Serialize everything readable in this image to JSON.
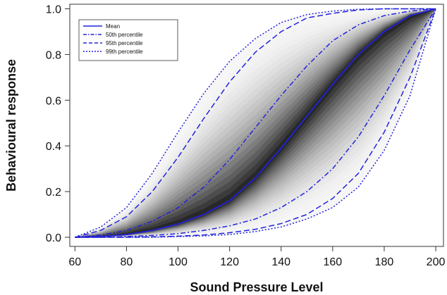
{
  "chart_data": {
    "type": "line",
    "title": "",
    "xlabel": "Sound Pressure Level",
    "ylabel": "Behavioural response",
    "xlim": [
      58,
      203
    ],
    "ylim": [
      -0.04,
      1.02
    ],
    "xticks": [
      60,
      80,
      100,
      120,
      140,
      160,
      180,
      200
    ],
    "yticks": [
      0.0,
      0.2,
      0.4,
      0.6,
      0.8,
      1.0
    ],
    "ytick_labels": [
      "0.0",
      "0.2",
      "0.4",
      "0.6",
      "0.8",
      "1.0"
    ],
    "grid": false,
    "legend_position": "top-left",
    "x": [
      60,
      70,
      80,
      90,
      100,
      110,
      120,
      130,
      140,
      150,
      160,
      170,
      180,
      190,
      200
    ],
    "series": [
      {
        "name": "Mean",
        "style": "solid",
        "color": "#2222dd",
        "values": [
          0.0,
          0.003,
          0.012,
          0.03,
          0.058,
          0.1,
          0.16,
          0.26,
          0.39,
          0.53,
          0.67,
          0.8,
          0.9,
          0.97,
          1.0
        ]
      },
      {
        "name": "50th percentile",
        "style": "dashdot",
        "color": "#2222dd",
        "values": [
          0.0,
          0.01,
          0.03,
          0.07,
          0.13,
          0.22,
          0.34,
          0.48,
          0.62,
          0.75,
          0.86,
          0.93,
          0.97,
          0.99,
          1.0
        ]
      },
      {
        "name": "50th percentile",
        "style": "dashdot",
        "color": "#2222dd",
        "values": [
          0.0,
          0.0,
          0.003,
          0.008,
          0.016,
          0.03,
          0.05,
          0.08,
          0.13,
          0.2,
          0.3,
          0.44,
          0.62,
          0.82,
          1.0
        ]
      },
      {
        "name": "95th percentile",
        "style": "dashed",
        "color": "#2222dd",
        "values": [
          0.0,
          0.03,
          0.09,
          0.2,
          0.35,
          0.52,
          0.68,
          0.81,
          0.9,
          0.96,
          0.98,
          0.995,
          1.0,
          1.0,
          1.0
        ]
      },
      {
        "name": "95th percentile",
        "style": "dashed",
        "color": "#2222dd",
        "values": [
          0.0,
          0.0,
          0.0,
          0.002,
          0.005,
          0.01,
          0.02,
          0.035,
          0.06,
          0.1,
          0.17,
          0.28,
          0.46,
          0.7,
          1.0
        ]
      },
      {
        "name": "99th percentile",
        "style": "dotted",
        "color": "#2222dd",
        "values": [
          0.0,
          0.045,
          0.13,
          0.28,
          0.46,
          0.63,
          0.77,
          0.87,
          0.94,
          0.975,
          0.99,
          0.998,
          1.0,
          1.0,
          1.0
        ]
      },
      {
        "name": "99th percentile",
        "style": "dotted",
        "color": "#2222dd",
        "values": [
          0.0,
          0.0,
          0.0,
          0.0,
          0.003,
          0.006,
          0.012,
          0.025,
          0.045,
          0.08,
          0.13,
          0.22,
          0.38,
          0.62,
          1.0
        ]
      }
    ],
    "legend": [
      {
        "label": "Mean",
        "style": "solid"
      },
      {
        "label": "50th percentile",
        "style": "dashdot"
      },
      {
        "label": "95th percentile",
        "style": "dashed"
      },
      {
        "label": "99th percentile",
        "style": "dotted"
      }
    ],
    "density_shading": {
      "description": "grayscale density of simulated response curves, darkest along the mean"
    }
  }
}
